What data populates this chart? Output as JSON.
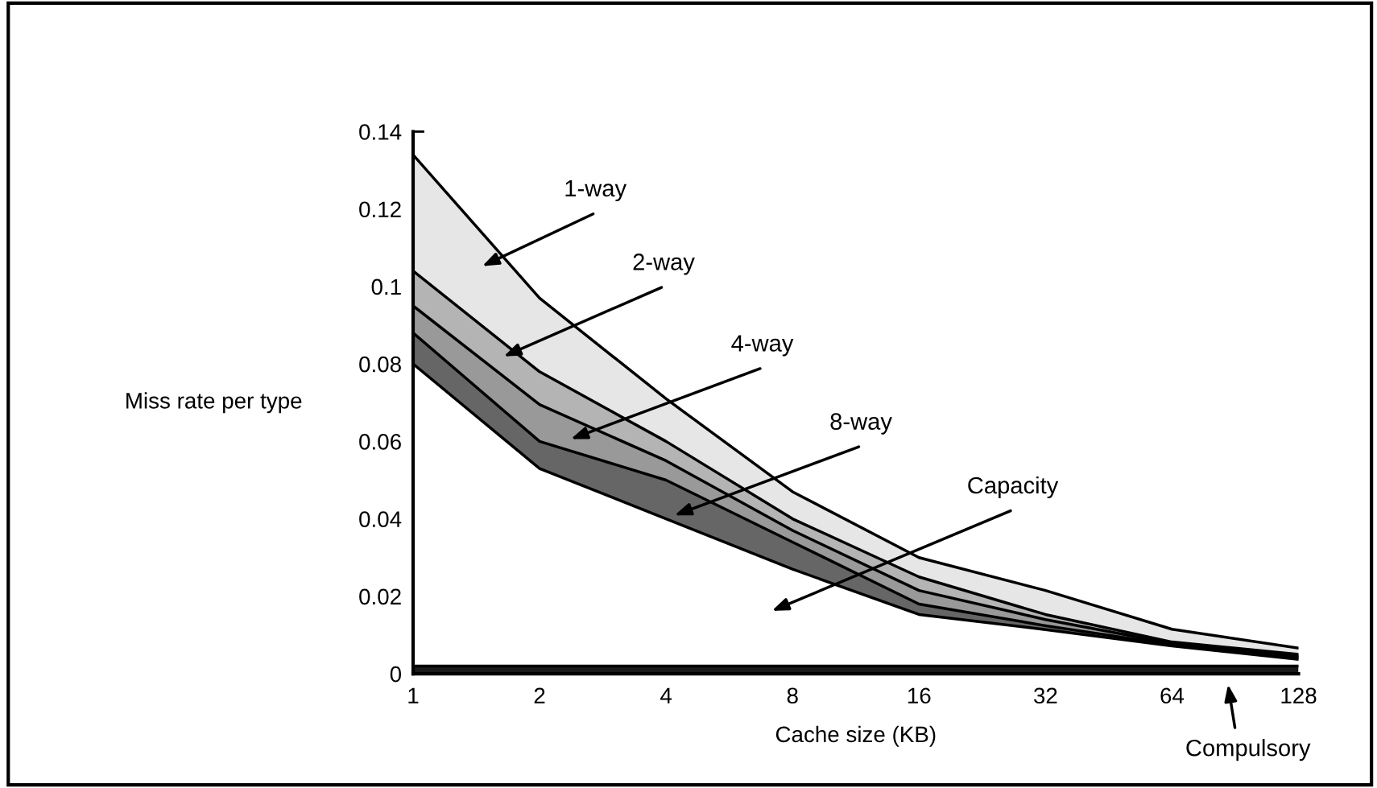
{
  "chart_data": {
    "type": "area",
    "stacked": true,
    "xlabel": "Cache size (KB)",
    "ylabel": "Miss rate per type",
    "categories": [
      "1",
      "2",
      "4",
      "8",
      "16",
      "32",
      "64",
      "128"
    ],
    "series": [
      {
        "color": "#1a1a1a",
        "values": [
          0.002,
          0.002,
          0.002,
          0.002,
          0.002,
          0.002,
          0.002,
          0.002
        ]
      },
      {
        "color": "#ffffff",
        "values": [
          0.078,
          0.051,
          0.038,
          0.025,
          0.0133,
          0.0094,
          0.0052,
          0.0017
        ]
      },
      {
        "color": "#666666",
        "values": [
          0.008,
          0.007,
          0.01,
          0.007,
          0.0027,
          0.001,
          0.0003,
          0.0005
        ]
      },
      {
        "color": "#999999",
        "values": [
          0.007,
          0.0095,
          0.005,
          0.003,
          0.0035,
          0.0016,
          0.0003,
          0.0003
        ]
      },
      {
        "color": "#b4b4b4",
        "values": [
          0.009,
          0.0085,
          0.005,
          0.003,
          0.0035,
          0.0013,
          0.0004,
          0.0005
        ]
      },
      {
        "color": "#e6e6e6",
        "values": [
          0.03,
          0.019,
          0.011,
          0.007,
          0.005,
          0.0062,
          0.0033,
          0.0016
        ]
      }
    ],
    "ylim": [
      0,
      0.14
    ],
    "yticks": [
      {
        "value": 0,
        "label": "0"
      },
      0.02,
      0.04,
      0.06,
      0.08,
      0.1,
      0.12,
      0.14
    ],
    "annotations": [
      "Compulsory",
      "Capacity",
      "8-way",
      "4-way",
      "2-way",
      "1-way"
    ],
    "grid": false,
    "legend": false
  }
}
